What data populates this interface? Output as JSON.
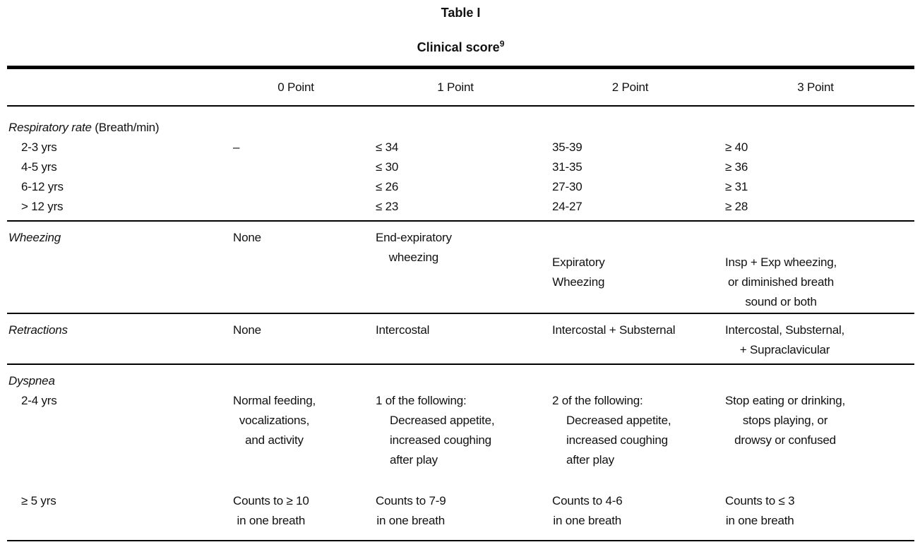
{
  "title": "Table I",
  "subtitle": "Clinical score",
  "subtitle_superscript": "9",
  "colors": {
    "text": "#111111",
    "background": "#ffffff",
    "rule": "#000000"
  },
  "table": {
    "columns": [
      "",
      "0 Point",
      "1 Point",
      "2 Point",
      "3 Point"
    ],
    "respiratory": {
      "label": "Respiratory rate",
      "label_note": " (Breath/min)",
      "rows": [
        {
          "age": "2-3 yrs",
          "p0": "–",
          "p1": "≤ 34",
          "p2": "35-39",
          "p3": "≥ 40"
        },
        {
          "age": "4-5 yrs",
          "p0": "",
          "p1": "≤ 30",
          "p2": "31-35",
          "p3": "≥ 36"
        },
        {
          "age": "6-12 yrs",
          "p0": "",
          "p1": "≤ 26",
          "p2": "27-30",
          "p3": "≥ 31"
        },
        {
          "age": "> 12 yrs",
          "p0": "",
          "p1": "≤ 23",
          "p2": "24-27",
          "p3": "≥ 28"
        }
      ]
    },
    "wheezing": {
      "label": "Wheezing",
      "p0": [
        "None"
      ],
      "p1": [
        "End-expiratory",
        "wheezing"
      ],
      "p2": [
        "Expiratory",
        "Wheezing"
      ],
      "p3": [
        "Insp + Exp wheezing,",
        "or diminished breath",
        "sound or both"
      ]
    },
    "retractions": {
      "label": "Retractions",
      "p0": [
        "None"
      ],
      "p1": [
        "Intercostal"
      ],
      "p2": [
        "Intercostal + Substernal"
      ],
      "p3": [
        "Intercostal, Substernal,",
        "+ Supraclavicular"
      ]
    },
    "dyspnea": {
      "label": "Dyspnea",
      "age1": "2-4 yrs",
      "age1_p0": [
        "Normal feeding,",
        "vocalizations,",
        "and activity"
      ],
      "age1_p1": [
        "1 of the following:",
        "Decreased appetite,",
        "increased coughing",
        "after play"
      ],
      "age1_p2": [
        "2 of the following:",
        "Decreased appetite,",
        "increased coughing",
        "after play"
      ],
      "age1_p3": [
        "Stop eating or drinking,",
        "stops playing, or",
        "drowsy or confused"
      ],
      "age2": "≥ 5 yrs",
      "age2_p0": [
        "Counts to ≥ 10",
        "in one breath"
      ],
      "age2_p1": [
        "Counts to 7-9",
        "in one breath"
      ],
      "age2_p2": [
        "Counts to 4-6",
        "in one breath"
      ],
      "age2_p3": [
        "Counts to ≤ 3",
        "in one breath"
      ]
    }
  }
}
